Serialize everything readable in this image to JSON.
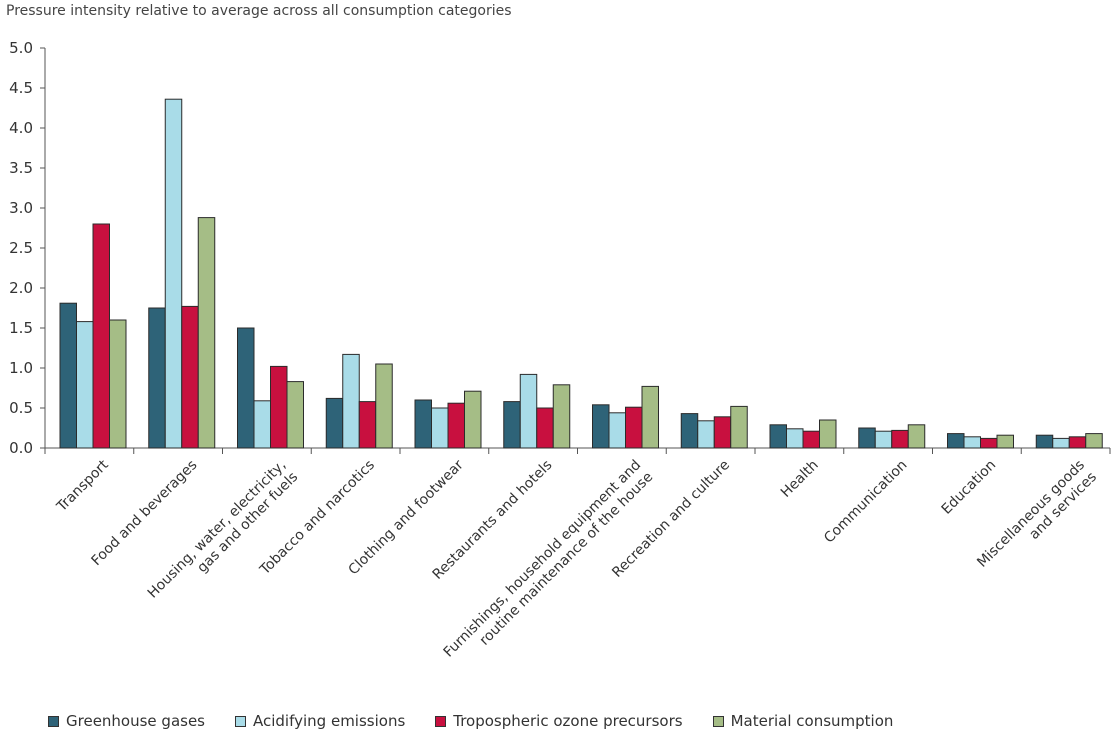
{
  "chart_data": {
    "type": "bar",
    "title": "Pressure intensity relative to average across all consumption categories",
    "xlabel": "",
    "ylabel": "",
    "ylim": [
      0,
      5
    ],
    "yticks": [
      "0.0",
      "0.5",
      "1.0",
      "1.5",
      "2.0",
      "2.5",
      "3.0",
      "3.5",
      "4.0",
      "4.5",
      "5.0"
    ],
    "grid": false,
    "legend_position": "bottom",
    "categories": [
      [
        "Transport"
      ],
      [
        "Food and beverages"
      ],
      [
        "Housing, water, electricity,",
        "gas and other fuels"
      ],
      [
        "Tobacco and narcotics"
      ],
      [
        "Clothing and footwear"
      ],
      [
        "Restaurants and hotels"
      ],
      [
        "Furnishings, household equipment and",
        "routine maintenance of the house"
      ],
      [
        "Recreation and culture"
      ],
      [
        "Health"
      ],
      [
        "Communication"
      ],
      [
        "Education"
      ],
      [
        "Miscellaneous goods",
        "and services"
      ]
    ],
    "series": [
      {
        "name": "Greenhouse gases",
        "color": "#2e6378",
        "values": [
          1.81,
          1.75,
          1.5,
          0.62,
          0.6,
          0.58,
          0.54,
          0.43,
          0.29,
          0.25,
          0.18,
          0.16
        ]
      },
      {
        "name": "Acidifying emissions",
        "color": "#a9dce8",
        "values": [
          1.58,
          4.36,
          0.59,
          1.17,
          0.5,
          0.92,
          0.44,
          0.34,
          0.24,
          0.21,
          0.14,
          0.12
        ]
      },
      {
        "name": "Tropospheric ozone precursors",
        "color": "#c8103f",
        "values": [
          2.8,
          1.77,
          1.02,
          0.58,
          0.56,
          0.5,
          0.51,
          0.39,
          0.21,
          0.22,
          0.12,
          0.14
        ]
      },
      {
        "name": "Material consumption",
        "color": "#a5bd86",
        "values": [
          1.6,
          2.88,
          0.83,
          1.05,
          0.71,
          0.79,
          0.77,
          0.52,
          0.35,
          0.29,
          0.16,
          0.18
        ]
      }
    ]
  }
}
